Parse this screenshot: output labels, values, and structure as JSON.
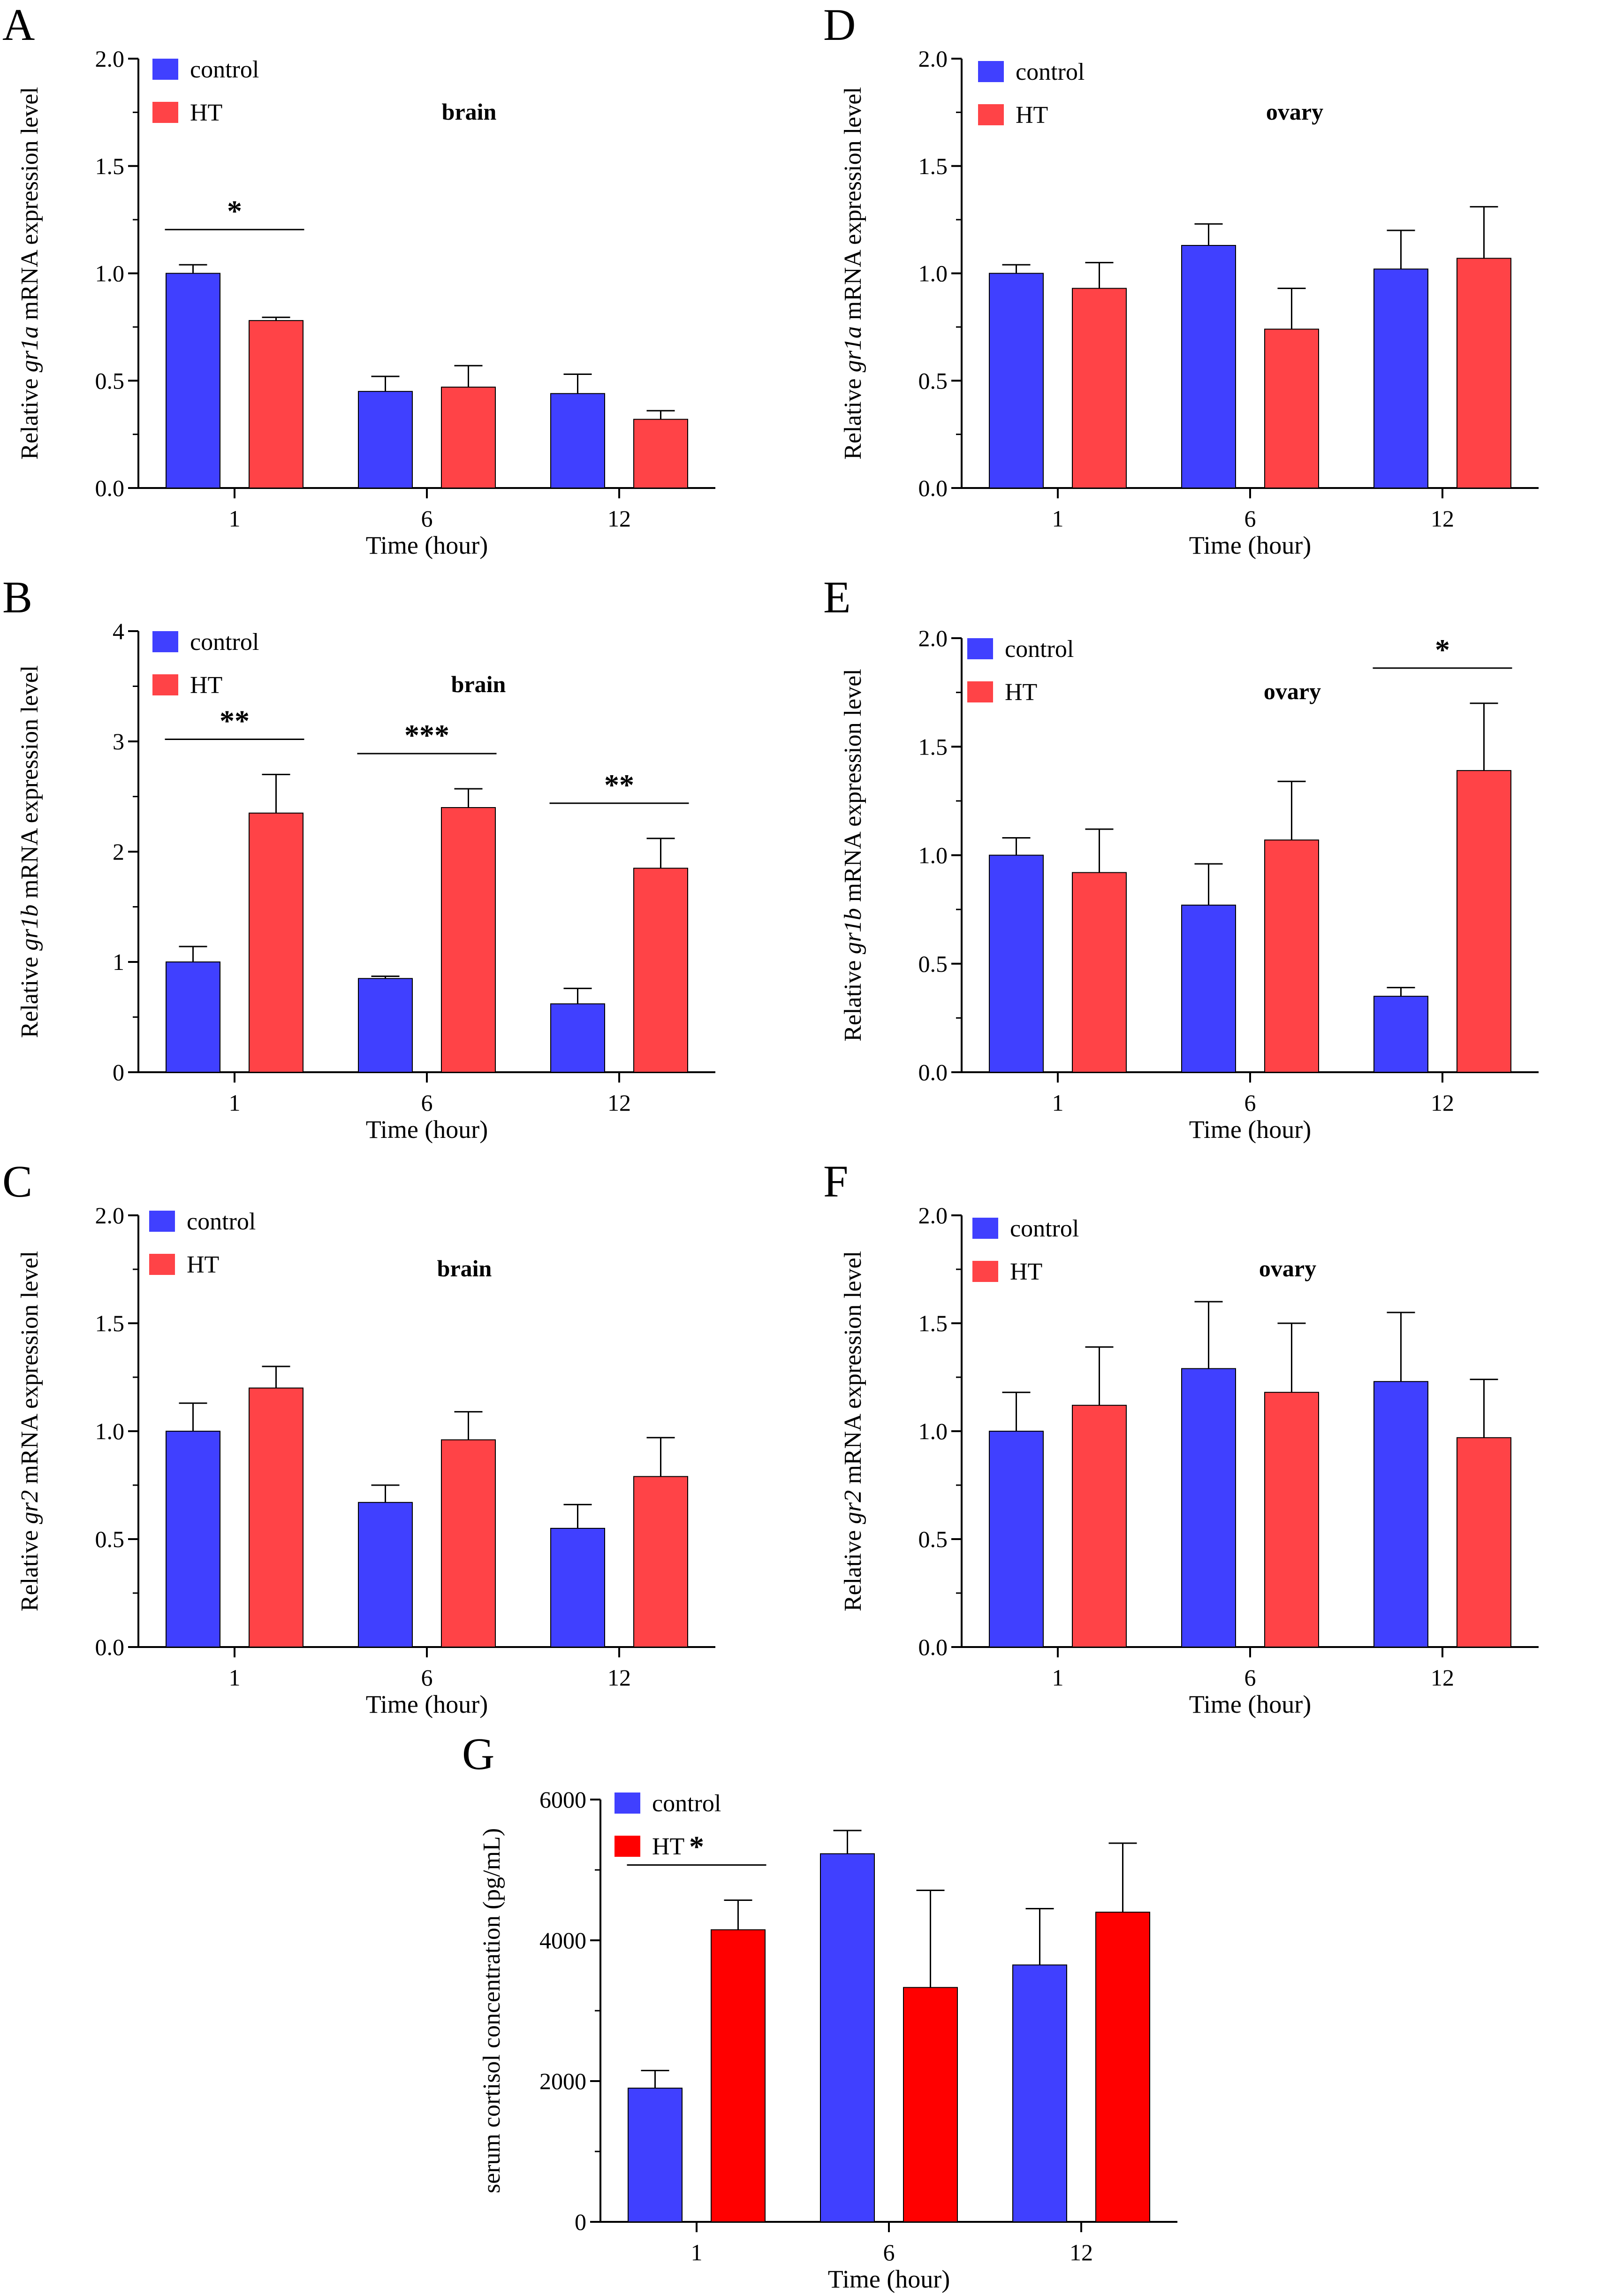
{
  "chart_data": [
    {
      "type": "bar",
      "panel": "A",
      "title": "brain",
      "gene": "gr1a",
      "ylabel_prefix": "Relative ",
      "ylabel_suffix": " mRNA expression level",
      "xlabel": "Time (hour)",
      "categories": [
        "1",
        "6",
        "12"
      ],
      "ylim": [
        0,
        2.0
      ],
      "yticks": [
        "0.0",
        "0.5",
        "1.0",
        "1.5",
        "2.0"
      ],
      "series": [
        {
          "name": "control",
          "color": "#4040ff",
          "values": [
            1.0,
            0.45,
            0.44
          ],
          "errors": [
            0.04,
            0.07,
            0.09
          ]
        },
        {
          "name": "HT",
          "color": "#ff4347",
          "values": [
            0.78,
            0.47,
            0.32
          ],
          "errors": [
            0.015,
            0.1,
            0.04
          ]
        }
      ],
      "significance": [
        {
          "category": "1",
          "label": "*"
        }
      ]
    },
    {
      "type": "bar",
      "panel": "B",
      "title": "brain",
      "gene": "gr1b",
      "ylabel_prefix": "Relative ",
      "ylabel_suffix": " mRNA expression level",
      "xlabel": "Time (hour)",
      "categories": [
        "1",
        "6",
        "12"
      ],
      "ylim": [
        0,
        4
      ],
      "yticks": [
        "0",
        "1",
        "2",
        "3",
        "4"
      ],
      "series": [
        {
          "name": "control",
          "color": "#4040ff",
          "values": [
            1.0,
            0.85,
            0.62
          ],
          "errors": [
            0.14,
            0.02,
            0.14
          ]
        },
        {
          "name": "HT",
          "color": "#ff4347",
          "values": [
            2.35,
            2.4,
            1.85
          ],
          "errors": [
            0.35,
            0.17,
            0.27
          ]
        }
      ],
      "significance": [
        {
          "category": "1",
          "label": "**"
        },
        {
          "category": "6",
          "label": "***"
        },
        {
          "category": "12",
          "label": "**"
        }
      ]
    },
    {
      "type": "bar",
      "panel": "C",
      "title": "brain",
      "gene": "gr2",
      "ylabel_prefix": "Relative ",
      "ylabel_suffix": " mRNA expression level",
      "xlabel": "Time (hour)",
      "categories": [
        "1",
        "6",
        "12"
      ],
      "ylim": [
        0,
        2.0
      ],
      "yticks": [
        "0.0",
        "0.5",
        "1.0",
        "1.5",
        "2.0"
      ],
      "series": [
        {
          "name": "control",
          "color": "#4040ff",
          "values": [
            1.0,
            0.67,
            0.55
          ],
          "errors": [
            0.13,
            0.08,
            0.11
          ]
        },
        {
          "name": "HT",
          "color": "#ff4347",
          "values": [
            1.2,
            0.96,
            0.79
          ],
          "errors": [
            0.1,
            0.13,
            0.18
          ]
        }
      ],
      "significance": []
    },
    {
      "type": "bar",
      "panel": "D",
      "title": "ovary",
      "gene": "gr1a",
      "ylabel_prefix": "Relative ",
      "ylabel_suffix": " mRNA expression level",
      "xlabel": "Time (hour)",
      "categories": [
        "1",
        "6",
        "12"
      ],
      "ylim": [
        0,
        2.0
      ],
      "yticks": [
        "0.0",
        "0.5",
        "1.0",
        "1.5",
        "2.0"
      ],
      "series": [
        {
          "name": "control",
          "color": "#4040ff",
          "values": [
            1.0,
            1.13,
            1.02
          ],
          "errors": [
            0.04,
            0.1,
            0.18
          ]
        },
        {
          "name": "HT",
          "color": "#ff4347",
          "values": [
            0.93,
            0.74,
            1.07
          ],
          "errors": [
            0.12,
            0.19,
            0.24
          ]
        }
      ],
      "significance": []
    },
    {
      "type": "bar",
      "panel": "E",
      "title": "ovary",
      "gene": "gr1b",
      "ylabel_prefix": "Relative ",
      "ylabel_suffix": " mRNA expression level",
      "xlabel": "Time (hour)",
      "categories": [
        "1",
        "6",
        "12"
      ],
      "ylim": [
        0,
        2.0
      ],
      "yticks": [
        "0.0",
        "0.5",
        "1.0",
        "1.5",
        "2.0"
      ],
      "series": [
        {
          "name": "control",
          "color": "#4040ff",
          "values": [
            1.0,
            0.77,
            0.35
          ],
          "errors": [
            0.08,
            0.19,
            0.04
          ]
        },
        {
          "name": "HT",
          "color": "#ff4347",
          "values": [
            0.92,
            1.07,
            1.39
          ],
          "errors": [
            0.2,
            0.27,
            0.31
          ]
        }
      ],
      "significance": [
        {
          "category": "12",
          "label": "*"
        }
      ]
    },
    {
      "type": "bar",
      "panel": "F",
      "title": "ovary",
      "gene": "gr2",
      "ylabel_prefix": "Relative ",
      "ylabel_suffix": " mRNA expression level",
      "xlabel": "Time (hour)",
      "categories": [
        "1",
        "6",
        "12"
      ],
      "ylim": [
        0,
        2.0
      ],
      "yticks": [
        "0.0",
        "0.5",
        "1.0",
        "1.5",
        "2.0"
      ],
      "series": [
        {
          "name": "control",
          "color": "#4040ff",
          "values": [
            1.0,
            1.29,
            1.23
          ],
          "errors": [
            0.18,
            0.31,
            0.32
          ]
        },
        {
          "name": "HT",
          "color": "#ff4347",
          "values": [
            1.12,
            1.18,
            0.97
          ],
          "errors": [
            0.27,
            0.32,
            0.27
          ]
        }
      ],
      "significance": []
    },
    {
      "type": "bar",
      "panel": "G",
      "title": "",
      "gene": "",
      "ylabel_prefix": "serum cortisol concentration (pg/mL)",
      "ylabel_suffix": "",
      "xlabel": "Time (hour)",
      "categories": [
        "1",
        "6",
        "12"
      ],
      "ylim": [
        0,
        6000
      ],
      "yticks": [
        "0",
        "2000",
        "4000",
        "6000"
      ],
      "series": [
        {
          "name": "control",
          "color": "#4040ff",
          "values": [
            1900,
            5230,
            3650
          ],
          "errors": [
            250,
            330,
            800
          ]
        },
        {
          "name": "HT",
          "color": "#ff0000",
          "values": [
            4150,
            3330,
            4400
          ],
          "errors": [
            420,
            1380,
            980
          ]
        }
      ],
      "significance": [
        {
          "category": "1",
          "label": "*"
        }
      ]
    }
  ]
}
